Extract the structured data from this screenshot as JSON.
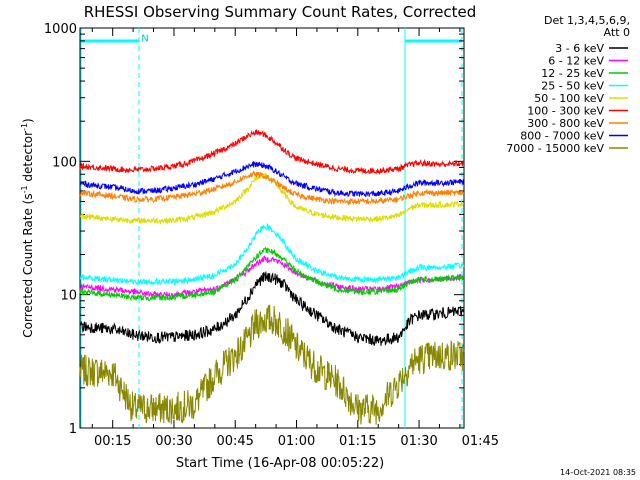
{
  "chart_data": {
    "type": "line",
    "title": "RHESSI Observing Summary Count Rates, Corrected",
    "xlabel": "Start Time (16-Apr-08 00:05:22)",
    "ylabel": "Corrected Count Rate (s⁻¹ detector⁻¹)",
    "ylabel_parts": {
      "pre": "Corrected Count Rate (s",
      "sup1": "-1",
      "mid": " detector",
      "sup2": "-1",
      "post": ")"
    },
    "y_scale": "log",
    "ylim": [
      1,
      1000
    ],
    "xlim_min": [
      7,
      101
    ],
    "y_ticks": [
      {
        "v": 1,
        "label": "1"
      },
      {
        "v": 10,
        "label": "10"
      },
      {
        "v": 100,
        "label": "100"
      },
      {
        "v": 1000,
        "label": "1000"
      }
    ],
    "x_ticks": [
      {
        "v": 15,
        "label": "00:15"
      },
      {
        "v": 30,
        "label": "00:30"
      },
      {
        "v": 45,
        "label": "00:45"
      },
      {
        "v": 60,
        "label": "01:00"
      },
      {
        "v": 75,
        "label": "01:15"
      },
      {
        "v": 90,
        "label": "01:30"
      },
      {
        "v": 105,
        "label": "01:45"
      }
    ],
    "legend_title": [
      "Det 1,3,4,5,6,9,",
      "Att 0"
    ],
    "legend_position": "right",
    "series": [
      {
        "name": "3 - 6 keV",
        "color": "#000000",
        "x": [
          7,
          15,
          20,
          25,
          30,
          35,
          40,
          45,
          48,
          50,
          52,
          54,
          56,
          58,
          60,
          65,
          70,
          75,
          80,
          85,
          88,
          90,
          95,
          100
        ],
        "y": [
          5.8,
          5.5,
          5.0,
          4.8,
          4.8,
          5.0,
          5.5,
          7.0,
          9.5,
          12.0,
          13.5,
          13.5,
          12.5,
          11.0,
          9.0,
          7.0,
          5.5,
          4.8,
          4.5,
          4.8,
          6.5,
          7.0,
          7.2,
          7.5
        ]
      },
      {
        "name": "6 - 12 keV",
        "color": "#ff00ff",
        "x": [
          7,
          15,
          20,
          25,
          30,
          35,
          40,
          45,
          48,
          50,
          52,
          54,
          56,
          58,
          60,
          65,
          70,
          75,
          80,
          85,
          88,
          90,
          95,
          100
        ],
        "y": [
          11.5,
          11.0,
          10.5,
          10.0,
          10.0,
          10.5,
          11.0,
          13.0,
          15.0,
          17.0,
          18.5,
          18.5,
          17.5,
          16.0,
          14.5,
          12.5,
          11.5,
          11.0,
          11.0,
          11.5,
          12.5,
          13.0,
          13.0,
          13.5
        ]
      },
      {
        "name": "12 - 25 keV",
        "color": "#00cc00",
        "x": [
          7,
          15,
          20,
          25,
          30,
          35,
          40,
          45,
          48,
          50,
          52,
          54,
          56,
          58,
          60,
          65,
          70,
          75,
          80,
          85,
          88,
          90,
          95,
          100
        ],
        "y": [
          10.5,
          10.0,
          9.5,
          9.5,
          9.5,
          10.0,
          10.5,
          13.0,
          16.0,
          19.0,
          21.5,
          21.0,
          19.5,
          17.0,
          15.0,
          12.5,
          11.0,
          10.5,
          10.5,
          11.0,
          12.5,
          13.0,
          13.0,
          13.5
        ]
      },
      {
        "name": "25 - 50 keV",
        "color": "#00ffff",
        "x": [
          7,
          15,
          20,
          25,
          30,
          35,
          40,
          45,
          48,
          50,
          52,
          54,
          56,
          58,
          60,
          65,
          70,
          75,
          80,
          85,
          88,
          90,
          95,
          100
        ],
        "y": [
          13.5,
          13.0,
          12.5,
          12.5,
          12.5,
          13.0,
          14.0,
          17.0,
          22.0,
          28.0,
          33.0,
          31.0,
          27.0,
          22.0,
          18.5,
          15.0,
          13.5,
          13.0,
          13.0,
          13.5,
          15.0,
          16.0,
          16.0,
          16.5
        ]
      },
      {
        "name": "50 - 100 keV",
        "color": "#dddd00",
        "x": [
          7,
          15,
          20,
          25,
          30,
          35,
          40,
          45,
          48,
          50,
          52,
          54,
          56,
          58,
          60,
          65,
          70,
          75,
          80,
          85,
          88,
          90,
          95,
          100
        ],
        "y": [
          39,
          37,
          36,
          36,
          36,
          38,
          42,
          50,
          62,
          74,
          80,
          72,
          62,
          52,
          45,
          40,
          38,
          37,
          37,
          39,
          45,
          47,
          47,
          48
        ]
      },
      {
        "name": "100 - 300 keV",
        "color": "#ff0000",
        "x": [
          7,
          15,
          20,
          25,
          30,
          35,
          40,
          45,
          48,
          50,
          52,
          54,
          56,
          58,
          60,
          65,
          70,
          75,
          80,
          85,
          88,
          90,
          95,
          100
        ],
        "y": [
          92,
          88,
          86,
          88,
          92,
          100,
          115,
          135,
          155,
          165,
          160,
          145,
          130,
          115,
          105,
          95,
          88,
          85,
          85,
          88,
          95,
          97,
          95,
          96
        ]
      },
      {
        "name": "300 - 800 keV",
        "color": "#ff7f00",
        "x": [
          7,
          15,
          20,
          25,
          30,
          35,
          40,
          45,
          48,
          50,
          52,
          54,
          56,
          58,
          60,
          65,
          70,
          75,
          80,
          85,
          88,
          90,
          95,
          100
        ],
        "y": [
          58,
          55,
          52,
          52,
          54,
          57,
          62,
          70,
          78,
          80,
          78,
          72,
          66,
          60,
          56,
          52,
          50,
          50,
          50,
          52,
          56,
          58,
          58,
          58
        ]
      },
      {
        "name": "800 - 7000 keV",
        "color": "#0000ff",
        "x": [
          7,
          15,
          20,
          25,
          30,
          35,
          40,
          45,
          48,
          50,
          52,
          54,
          56,
          58,
          60,
          65,
          70,
          75,
          80,
          85,
          88,
          90,
          95,
          100
        ],
        "y": [
          68,
          64,
          60,
          60,
          63,
          67,
          74,
          84,
          92,
          95,
          93,
          88,
          80,
          73,
          68,
          62,
          58,
          57,
          57,
          60,
          66,
          69,
          69,
          70
        ]
      },
      {
        "name": "7000 - 15000 keV",
        "color": "#888800",
        "x": [
          7,
          15,
          20,
          25,
          30,
          35,
          40,
          45,
          48,
          50,
          52,
          54,
          56,
          58,
          60,
          65,
          70,
          75,
          80,
          85,
          88,
          90,
          95,
          100
        ],
        "y": [
          2.7,
          2.6,
          1.4,
          1.4,
          1.4,
          1.5,
          2.5,
          3.5,
          4.5,
          6.0,
          6.5,
          6.5,
          6.0,
          5.0,
          4.0,
          2.8,
          2.2,
          1.4,
          1.4,
          2.2,
          3.0,
          3.3,
          3.5,
          3.5
        ]
      }
    ],
    "annotations": [
      {
        "text": "N",
        "x": 21,
        "y": 850
      }
    ]
  },
  "timestamp": "14-Oct-2021 08:35"
}
